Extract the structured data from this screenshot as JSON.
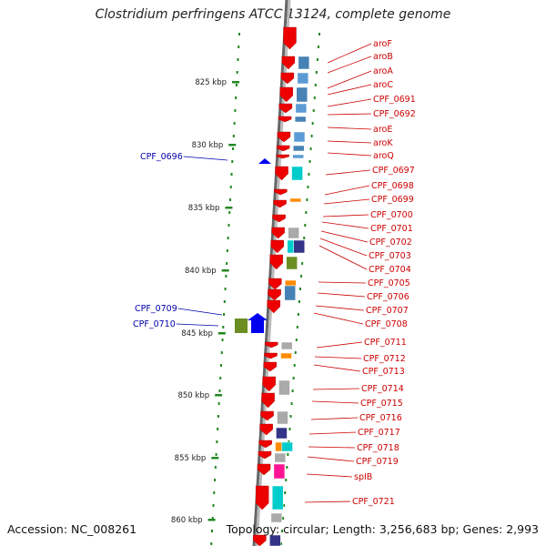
{
  "title": "Clostridium perfringens ATCC 13124, complete genome",
  "footer": {
    "accession": "Accession: NC_008261",
    "summary": "Topology: circular; Length: 3,256,683 bp; Genes: 2,993"
  },
  "colors": {
    "forward_gene": "#ee0000",
    "reverse_gene": "#0000ee",
    "axis_tick": "#228822",
    "backbone": "#888888",
    "label_forward": "#cc0000",
    "label_reverse": "#0000aa"
  },
  "ruler_ticks": [
    {
      "label": "825 kbp",
      "kbp": 825
    },
    {
      "label": "830 kbp",
      "kbp": 830
    },
    {
      "label": "835 kbp",
      "kbp": 835
    },
    {
      "label": "840 kbp",
      "kbp": 840
    },
    {
      "label": "845 kbp",
      "kbp": 845
    },
    {
      "label": "850 kbp",
      "kbp": 850
    },
    {
      "label": "855 kbp",
      "kbp": 855
    },
    {
      "label": "860 kbp",
      "kbp": 860
    }
  ],
  "forward_genes": [
    {
      "name": "aroF",
      "strand": "+"
    },
    {
      "name": "aroB",
      "strand": "+"
    },
    {
      "name": "aroA",
      "strand": "+"
    },
    {
      "name": "aroC",
      "strand": "+"
    },
    {
      "name": "CPF_0691",
      "strand": "+"
    },
    {
      "name": "CPF_0692",
      "strand": "+"
    },
    {
      "name": "aroE",
      "strand": "+"
    },
    {
      "name": "aroK",
      "strand": "+"
    },
    {
      "name": "aroQ",
      "strand": "+"
    },
    {
      "name": "CPF_0697",
      "strand": "+"
    },
    {
      "name": "CPF_0698",
      "strand": "+"
    },
    {
      "name": "CPF_0699",
      "strand": "+"
    },
    {
      "name": "CPF_0700",
      "strand": "+"
    },
    {
      "name": "CPF_0701",
      "strand": "+"
    },
    {
      "name": "CPF_0702",
      "strand": "+"
    },
    {
      "name": "CPF_0703",
      "strand": "+"
    },
    {
      "name": "CPF_0704",
      "strand": "+"
    },
    {
      "name": "CPF_0705",
      "strand": "+"
    },
    {
      "name": "CPF_0706",
      "strand": "+"
    },
    {
      "name": "CPF_0707",
      "strand": "+"
    },
    {
      "name": "CPF_0708",
      "strand": "+"
    },
    {
      "name": "CPF_0711",
      "strand": "+"
    },
    {
      "name": "CPF_0712",
      "strand": "+"
    },
    {
      "name": "CPF_0713",
      "strand": "+"
    },
    {
      "name": "CPF_0714",
      "strand": "+"
    },
    {
      "name": "CPF_0715",
      "strand": "+"
    },
    {
      "name": "CPF_0716",
      "strand": "+"
    },
    {
      "name": "CPF_0717",
      "strand": "+"
    },
    {
      "name": "CPF_0718",
      "strand": "+"
    },
    {
      "name": "CPF_0719",
      "strand": "+"
    },
    {
      "name": "spIB",
      "strand": "+"
    },
    {
      "name": "CPF_0721",
      "strand": "+"
    }
  ],
  "reverse_genes": [
    {
      "name": "CPF_0696",
      "strand": "-"
    },
    {
      "name": "CPF_0709",
      "strand": "-"
    },
    {
      "name": "CPF_0710",
      "strand": "-"
    }
  ],
  "cog_palette": [
    "#4682b4",
    "#5b9bd5",
    "#00cccc",
    "#ff8c00",
    "#aaaaaa",
    "#6b8e23",
    "#333388",
    "#ff1493"
  ]
}
